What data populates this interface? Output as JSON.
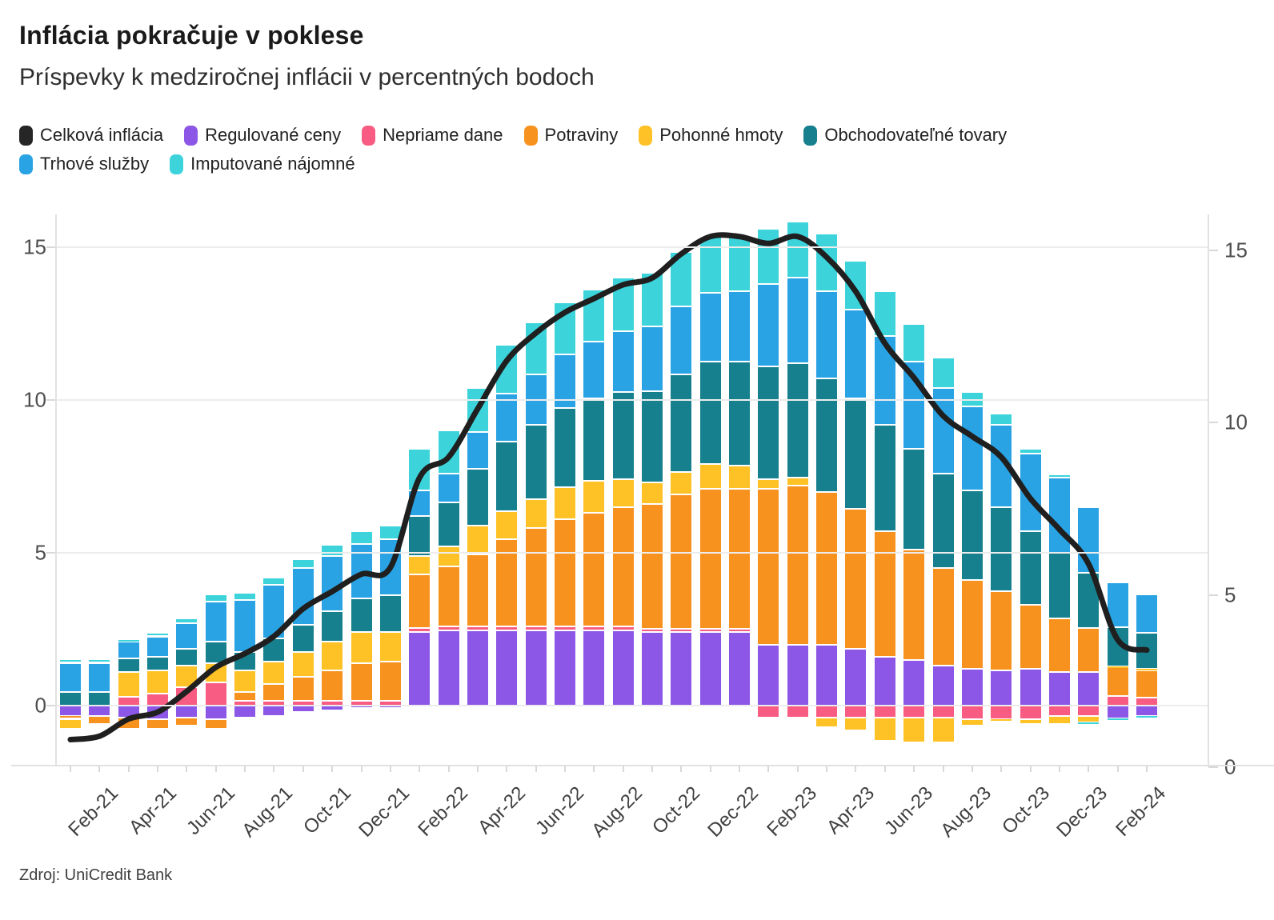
{
  "header": {
    "title": "Inflácia pokračuje v poklese",
    "subtitle": "Príspevky k medziročnej inflácii v percentných bodoch"
  },
  "source_note": "Zdroj: UniCredit Bank",
  "colors": {
    "background": "#ffffff",
    "line_total": "#1f1f1f",
    "regulated": "#8C57E6",
    "indirect_taxes": "#F85C82",
    "food": "#F8921E",
    "fuels": "#FFC226",
    "tradables": "#17808E",
    "market_services": "#2AA3E4",
    "imputed_rents": "#3CD3DB",
    "grid": "#ececec",
    "axis_text": "#4d4d4d"
  },
  "legend_rows": [
    [
      {
        "label": "Celková inflácia",
        "color": "#262626"
      },
      {
        "label": "Regulované ceny",
        "color": "#8C57E6"
      },
      {
        "label": "Nepriame dane",
        "color": "#F85C82"
      },
      {
        "label": "Potraviny",
        "color": "#F8921E"
      },
      {
        "label": "Pohonné hmoty",
        "color": "#FFC226"
      },
      {
        "label": "Obchodovateľné tovary",
        "color": "#17808E"
      }
    ],
    [
      {
        "label": "Trhové služby",
        "color": "#2AA3E4"
      },
      {
        "label": "Imputované nájomné",
        "color": "#3CD3DB"
      }
    ]
  ],
  "chart_data": {
    "type": "bar",
    "subtype": "stacked-bars-with-line-overlay",
    "title": "Inflácia pokračuje v poklese",
    "subtitle": "Príspevky k medziročnej inflácii v percentných bodoch",
    "xlabel": "",
    "ylabel": "percentné body",
    "grid": "horizontal",
    "legend_position": "top",
    "left_axis": {
      "ticks": [
        0,
        5,
        10,
        15
      ],
      "range": [
        -2,
        16.1
      ]
    },
    "right_axis": {
      "ticks": [
        0,
        5,
        10,
        15
      ],
      "range": [
        0,
        16
      ]
    },
    "categories": [
      "Jan-21",
      "Feb-21",
      "Mar-21",
      "Apr-21",
      "May-21",
      "Jun-21",
      "Jul-21",
      "Aug-21",
      "Sep-21",
      "Oct-21",
      "Nov-21",
      "Dec-21",
      "Jan-22",
      "Feb-22",
      "Mar-22",
      "Apr-22",
      "May-22",
      "Jun-22",
      "Jul-22",
      "Aug-22",
      "Sep-22",
      "Oct-22",
      "Nov-22",
      "Dec-22",
      "Jan-23",
      "Feb-23",
      "Mar-23",
      "Apr-23",
      "May-23",
      "Jun-23",
      "Jul-23",
      "Aug-23",
      "Sep-23",
      "Oct-23",
      "Nov-23",
      "Dec-23",
      "Jan-24",
      "Feb-24"
    ],
    "x_tick_labels": [
      "Feb-21",
      "Apr-21",
      "Jun-21",
      "Aug-21",
      "Oct-21",
      "Dec-21",
      "Feb-22",
      "Apr-22",
      "Jun-22",
      "Aug-22",
      "Oct-22",
      "Dec-22",
      "Feb-23",
      "Apr-23",
      "Jun-23",
      "Aug-23",
      "Oct-23",
      "Dec-23",
      "Feb-24"
    ],
    "series": [
      {
        "name": "Regulované ceny",
        "color": "#8C57E6",
        "values": [
          -0.35,
          -0.35,
          -0.4,
          -0.45,
          -0.4,
          -0.45,
          -0.4,
          -0.35,
          -0.2,
          -0.15,
          -0.1,
          -0.05,
          2.4,
          2.45,
          2.45,
          2.45,
          2.45,
          2.45,
          2.45,
          2.45,
          2.4,
          2.4,
          2.4,
          2.4,
          2.0,
          2.0,
          2.0,
          1.85,
          1.6,
          1.5,
          1.3,
          1.2,
          1.15,
          1.2,
          1.1,
          1.1,
          -0.42,
          -0.35
        ]
      },
      {
        "name": "Nepriame dane",
        "color": "#F85C82",
        "values": [
          0,
          0,
          0.3,
          0.4,
          0.6,
          0.75,
          0.15,
          0.15,
          0.15,
          0.15,
          0.15,
          0.15,
          0.15,
          0.15,
          0.15,
          0.15,
          0.15,
          0.15,
          0.15,
          0.15,
          0.1,
          0.1,
          0.1,
          0.1,
          -0.4,
          -0.4,
          -0.4,
          -0.4,
          -0.4,
          -0.4,
          -0.4,
          -0.45,
          -0.45,
          -0.45,
          -0.35,
          -0.35,
          0.32,
          0.25
        ]
      },
      {
        "name": "Potraviny",
        "color": "#F8921E",
        "values": [
          -0.1,
          -0.25,
          -0.35,
          -0.3,
          -0.25,
          -0.3,
          0.3,
          0.55,
          0.8,
          1.0,
          1.25,
          1.3,
          1.75,
          1.95,
          2.35,
          2.85,
          3.2,
          3.5,
          3.7,
          3.9,
          4.1,
          4.4,
          4.6,
          4.6,
          5.1,
          5.2,
          5.0,
          4.6,
          4.1,
          3.6,
          3.2,
          2.9,
          2.6,
          2.1,
          1.75,
          1.45,
          0.95,
          0.9
        ]
      },
      {
        "name": "Pohonné hmoty",
        "color": "#FFC226",
        "values": [
          -0.3,
          0,
          0.8,
          0.75,
          0.7,
          0.65,
          0.7,
          0.75,
          0.8,
          0.95,
          1.0,
          0.95,
          0.6,
          0.65,
          0.95,
          0.9,
          0.95,
          1.05,
          1.05,
          0.9,
          0.7,
          0.75,
          0.8,
          0.75,
          0.3,
          0.25,
          -0.3,
          -0.4,
          -0.75,
          -0.8,
          -0.8,
          -0.2,
          -0.1,
          -0.15,
          -0.25,
          -0.2,
          0.02,
          0.05
        ]
      },
      {
        "name": "Obchodovateľné tovary",
        "color": "#17808E",
        "values": [
          0.45,
          0.45,
          0.45,
          0.45,
          0.55,
          0.7,
          0.6,
          0.75,
          0.9,
          1.0,
          1.1,
          1.2,
          1.3,
          1.45,
          1.85,
          2.3,
          2.45,
          2.6,
          2.7,
          2.85,
          3.0,
          3.2,
          3.35,
          3.4,
          3.7,
          3.75,
          3.7,
          3.6,
          3.5,
          3.3,
          3.1,
          2.95,
          2.75,
          2.4,
          2.15,
          1.8,
          1.28,
          1.18
        ]
      },
      {
        "name": "Trhové služby",
        "color": "#2AA3E4",
        "values": [
          0.95,
          0.95,
          0.55,
          0.65,
          0.85,
          1.3,
          1.7,
          1.75,
          1.85,
          1.8,
          1.8,
          1.85,
          0.85,
          0.95,
          1.2,
          1.55,
          1.65,
          1.75,
          1.85,
          2.0,
          2.1,
          2.2,
          2.25,
          2.3,
          2.7,
          2.8,
          2.85,
          2.9,
          2.9,
          2.85,
          2.8,
          2.75,
          2.7,
          2.55,
          2.45,
          2.15,
          1.45,
          1.26
        ]
      },
      {
        "name": "Imputované nájomné",
        "color": "#3CD3DB",
        "values": [
          0.1,
          0.1,
          0.05,
          0.1,
          0.15,
          0.25,
          0.25,
          0.25,
          0.3,
          0.35,
          0.4,
          0.45,
          1.35,
          1.4,
          1.45,
          1.6,
          1.7,
          1.7,
          1.7,
          1.75,
          1.75,
          1.8,
          1.85,
          1.8,
          1.8,
          1.85,
          1.9,
          1.6,
          1.45,
          1.25,
          1.0,
          0.45,
          0.35,
          0.15,
          0.1,
          -0.05,
          -0.06,
          -0.08
        ]
      }
    ],
    "line_series": {
      "name": "Celková inflácia",
      "color": "#1f1f1f",
      "axis": "right",
      "values": [
        0.8,
        0.9,
        1.4,
        1.6,
        2.2,
        2.9,
        3.3,
        3.8,
        4.6,
        5.1,
        5.6,
        5.8,
        8.4,
        9.0,
        10.4,
        11.8,
        12.6,
        13.2,
        13.6,
        14.0,
        14.2,
        14.9,
        15.4,
        15.4,
        15.2,
        15.4,
        14.8,
        13.8,
        12.3,
        11.3,
        10.2,
        9.6,
        9.0,
        7.8,
        6.9,
        5.9,
        3.7,
        3.4
      ]
    }
  },
  "axes_text": {
    "left_ticks": [
      "0",
      "5",
      "10",
      "15"
    ],
    "right_ticks": [
      "0",
      "5",
      "10",
      "15"
    ]
  }
}
